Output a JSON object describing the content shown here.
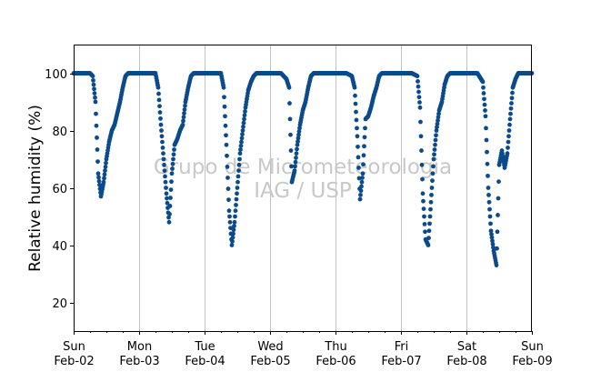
{
  "chart_data": {
    "type": "scatter",
    "title": "",
    "xlabel": "",
    "ylabel": "Relative humidity (%)",
    "xlim": [
      "2014-02-02",
      "2014-02-09"
    ],
    "ylim": [
      10,
      110
    ],
    "yticks": [
      20,
      40,
      60,
      80,
      100
    ],
    "xticks": [
      {
        "day": "Sun",
        "date": "Feb-02"
      },
      {
        "day": "Mon",
        "date": "Feb-03"
      },
      {
        "day": "Tue",
        "date": "Feb-04"
      },
      {
        "day": "Wed",
        "date": "Feb-05"
      },
      {
        "day": "Thu",
        "date": "Feb-06"
      },
      {
        "day": "Fri",
        "date": "Feb-07"
      },
      {
        "day": "Sat",
        "date": "Feb-08"
      },
      {
        "day": "Sun",
        "date": "Feb-09"
      }
    ],
    "grid": "vertical lines at day boundaries",
    "marker_color": "#0b4a8b",
    "series": [
      {
        "x_units": "hours after 2014-02-02 00:00 local time",
        "values": [
          [
            0,
            100
          ],
          [
            2,
            100
          ],
          [
            4,
            100
          ],
          [
            6,
            100
          ],
          [
            7,
            99
          ],
          [
            8,
            90
          ],
          [
            9,
            65
          ],
          [
            10,
            57
          ],
          [
            11,
            62
          ],
          [
            12,
            70
          ],
          [
            13,
            76
          ],
          [
            14,
            80
          ],
          [
            15,
            82
          ],
          [
            16,
            86
          ],
          [
            17,
            90
          ],
          [
            18,
            95
          ],
          [
            19,
            99
          ],
          [
            20,
            100
          ],
          [
            22,
            100
          ],
          [
            24,
            100
          ],
          [
            26,
            100
          ],
          [
            28,
            100
          ],
          [
            30,
            100
          ],
          [
            31,
            95
          ],
          [
            32,
            82
          ],
          [
            33,
            70
          ],
          [
            34,
            58
          ],
          [
            35,
            48
          ],
          [
            36,
            65
          ],
          [
            37,
            75
          ],
          [
            38,
            77
          ],
          [
            39,
            80
          ],
          [
            40,
            82
          ],
          [
            41,
            90
          ],
          [
            42,
            95
          ],
          [
            43,
            99
          ],
          [
            44,
            100
          ],
          [
            46,
            100
          ],
          [
            48,
            100
          ],
          [
            50,
            100
          ],
          [
            52,
            100
          ],
          [
            54,
            100
          ],
          [
            55,
            95
          ],
          [
            56,
            75
          ],
          [
            57,
            52
          ],
          [
            58,
            40
          ],
          [
            59,
            48
          ],
          [
            60,
            60
          ],
          [
            61,
            72
          ],
          [
            62,
            80
          ],
          [
            63,
            88
          ],
          [
            64,
            94
          ],
          [
            65,
            97
          ],
          [
            66,
            99
          ],
          [
            67,
            100
          ],
          [
            70,
            100
          ],
          [
            72,
            100
          ],
          [
            74,
            100
          ],
          [
            76,
            100
          ],
          [
            78,
            98
          ],
          [
            79,
            95
          ],
          [
            80,
            62
          ],
          [
            81,
            66
          ],
          [
            82,
            75
          ],
          [
            83,
            82
          ],
          [
            84,
            87
          ],
          [
            85,
            90
          ],
          [
            86,
            95
          ],
          [
            87,
            99
          ],
          [
            88,
            100
          ],
          [
            90,
            100
          ],
          [
            93,
            100
          ],
          [
            96,
            100
          ],
          [
            98,
            100
          ],
          [
            100,
            100
          ],
          [
            102,
            99
          ],
          [
            103,
            95
          ],
          [
            104,
            78
          ],
          [
            105,
            56
          ],
          [
            106,
            65
          ],
          [
            107,
            84
          ],
          [
            108,
            85
          ],
          [
            109,
            88
          ],
          [
            110,
            92
          ],
          [
            111,
            95
          ],
          [
            112,
            99
          ],
          [
            113,
            100
          ],
          [
            115,
            100
          ],
          [
            118,
            100
          ],
          [
            120,
            100
          ],
          [
            122,
            100
          ],
          [
            124,
            100
          ],
          [
            126,
            99
          ],
          [
            127,
            88
          ],
          [
            128,
            58
          ],
          [
            129,
            42
          ],
          [
            130,
            40
          ],
          [
            131,
            55
          ],
          [
            132,
            70
          ],
          [
            133,
            80
          ],
          [
            134,
            87
          ],
          [
            135,
            90
          ],
          [
            136,
            96
          ],
          [
            137,
            99
          ],
          [
            138,
            100
          ],
          [
            141,
            100
          ],
          [
            144,
            100
          ],
          [
            146,
            100
          ],
          [
            148,
            100
          ],
          [
            150,
            97
          ],
          [
            151,
            85
          ],
          [
            152,
            60
          ],
          [
            153,
            45
          ],
          [
            154,
            38
          ],
          [
            155,
            33
          ],
          [
            156,
            68
          ],
          [
            157,
            73
          ],
          [
            158,
            67
          ],
          [
            159,
            72
          ],
          [
            160,
            84
          ],
          [
            161,
            95
          ],
          [
            162,
            98
          ],
          [
            163,
            100
          ],
          [
            164,
            100
          ],
          [
            168,
            100
          ]
        ]
      }
    ]
  },
  "watermark": {
    "line1": "Grupo de Micrometeorologia",
    "line2": "IAG / USP"
  }
}
